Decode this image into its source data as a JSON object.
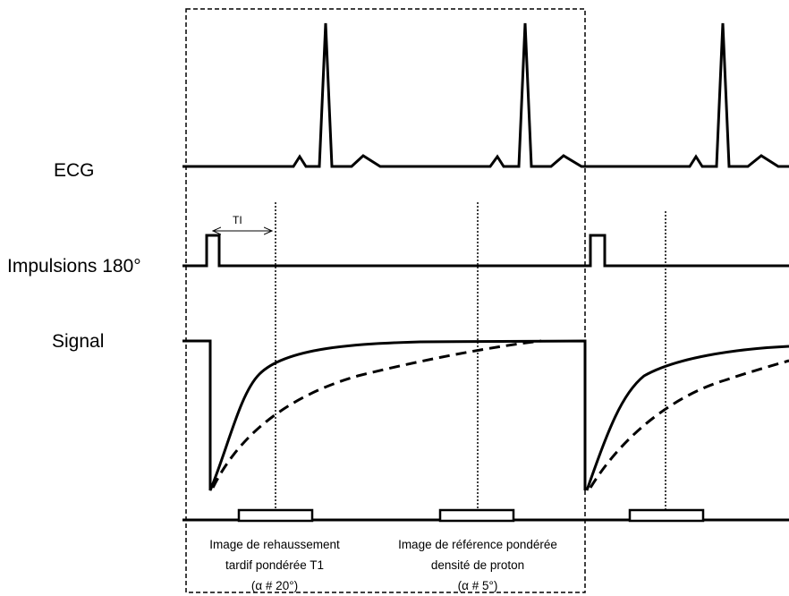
{
  "labels": {
    "ecg": "ECG",
    "pulses": "Impulsions 180°",
    "signal": "Signal",
    "ti": "TI"
  },
  "captions": {
    "left": [
      "Image de rehaussement",
      "tardif pondérée T1",
      "(α # 20°)"
    ],
    "right": [
      "Image de référence pondérée",
      "densité de proton",
      "(α  # 5°)"
    ]
  }
}
